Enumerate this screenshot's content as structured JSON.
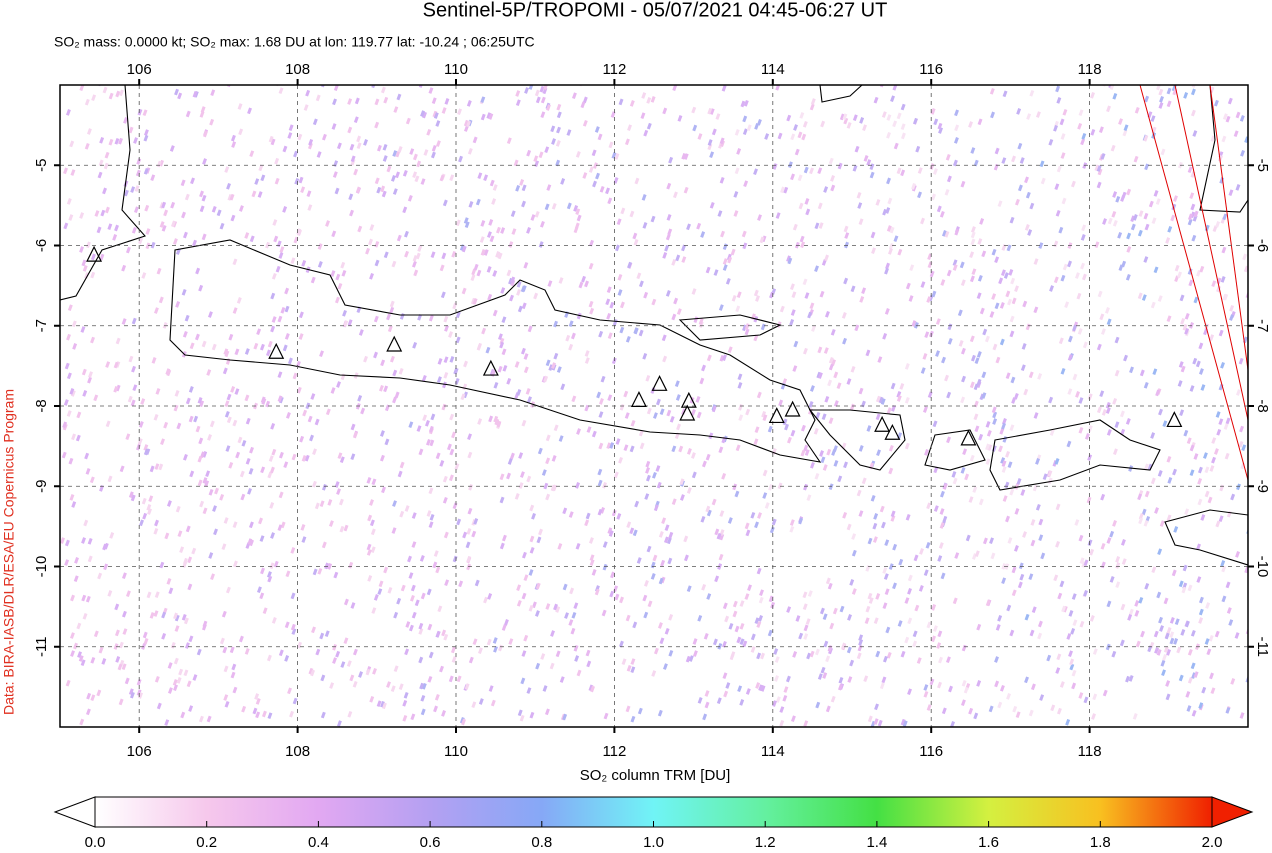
{
  "title": "Sentinel-5P/TROPOMI - 05/07/2021 04:45-06:27 UT",
  "subtitle": "SO₂ mass: 0.0000 kt; SO₂ max: 1.68 DU at lon: 119.77 lat: -10.24 ; 06:25UTC",
  "credit": "Data: BIRA-IASB/DLR/ESA/EU Copernicus Program",
  "map": {
    "lonlim": [
      105,
      120
    ],
    "latlim": [
      -12,
      -4
    ],
    "lonticks": [
      106,
      108,
      110,
      112,
      114,
      116,
      118
    ],
    "latticks": [
      -5,
      -6,
      -7,
      -8,
      -9,
      -10,
      -11
    ],
    "grid": true,
    "volcanoes": [
      {
        "lon": 105.43,
        "lat": -6.12
      },
      {
        "lon": 107.73,
        "lat": -7.33
      },
      {
        "lon": 109.22,
        "lat": -7.24
      },
      {
        "lon": 110.44,
        "lat": -7.54
      },
      {
        "lon": 112.31,
        "lat": -7.93
      },
      {
        "lon": 112.57,
        "lat": -7.73
      },
      {
        "lon": 112.94,
        "lat": -7.94
      },
      {
        "lon": 112.92,
        "lat": -8.1
      },
      {
        "lon": 114.05,
        "lat": -8.13
      },
      {
        "lon": 114.25,
        "lat": -8.05
      },
      {
        "lon": 115.38,
        "lat": -8.24
      },
      {
        "lon": 115.51,
        "lat": -8.34
      },
      {
        "lon": 116.47,
        "lat": -8.41
      },
      {
        "lon": 119.07,
        "lat": -8.18
      }
    ]
  },
  "colorbar": {
    "label": "SO₂ column TRM [DU]",
    "lim": [
      0,
      2
    ],
    "ticks": [
      {
        "value": 0,
        "label": "0.0"
      },
      0.2,
      0.4,
      0.6,
      0.8,
      {
        "value": 1,
        "label": "1.0"
      },
      1.2,
      1.4,
      1.6,
      1.8,
      {
        "value": 2,
        "label": "2.0"
      }
    ],
    "colors": [
      "#ffffff",
      "#f6c8ec",
      "#e2a8f2",
      "#b4a0f2",
      "#86a8f6",
      "#70f4f6",
      "#64f0a0",
      "#44e044",
      "#d4f040",
      "#f8c020",
      "#f02000"
    ]
  }
}
